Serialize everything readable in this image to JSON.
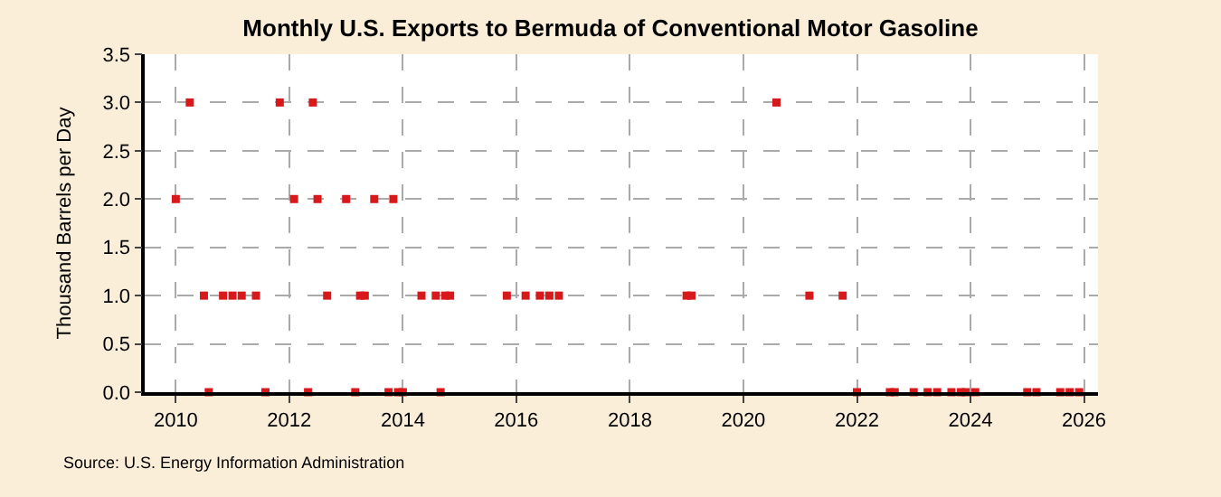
{
  "chart_data": {
    "type": "scatter",
    "title": "Monthly U.S. Exports to Bermuda of Conventional Motor Gasoline",
    "ylabel": "Thousand Barrels per Day",
    "annotations": [
      "Source: U.S. Energy Information Administration"
    ],
    "x": [
      "2010-01",
      "2010-04",
      "2010-07",
      "2010-08",
      "2010-11",
      "2011-01",
      "2011-03",
      "2011-06",
      "2011-08",
      "2011-11",
      "2012-02",
      "2012-05",
      "2012-06",
      "2012-07",
      "2012-09",
      "2013-01",
      "2013-03",
      "2013-04",
      "2013-05",
      "2013-07",
      "2013-10",
      "2013-11",
      "2013-12",
      "2014-01",
      "2014-05",
      "2014-08",
      "2014-09",
      "2014-10",
      "2014-11",
      "2015-11",
      "2016-03",
      "2016-06",
      "2016-08",
      "2016-10",
      "2019-01",
      "2019-02",
      "2020-08",
      "2021-03",
      "2021-10",
      "2022-01",
      "2022-08",
      "2022-09",
      "2023-01",
      "2023-04",
      "2023-06",
      "2023-09",
      "2023-11",
      "2023-12",
      "2024-02",
      "2025-01",
      "2025-03",
      "2025-08",
      "2025-10",
      "2025-12"
    ],
    "series": [
      {
        "color": "#d7191c",
        "values": [
          2,
          3,
          1,
          0,
          1,
          1,
          1,
          1,
          0,
          3,
          2,
          0,
          3,
          2,
          1,
          2,
          0,
          1,
          1,
          2,
          0,
          2,
          0,
          0,
          1,
          1,
          0,
          1,
          1,
          1,
          1,
          1,
          1,
          1,
          1,
          1,
          3,
          1,
          1,
          0,
          0,
          0,
          0,
          0,
          0,
          0,
          0,
          0,
          0,
          0,
          0,
          0,
          0,
          0
        ]
      }
    ],
    "xlim": [
      "2009-06-15",
      "2026-04-01"
    ],
    "xticks": [
      {
        "value": "2010-01-01",
        "label": "2010"
      },
      {
        "value": "2012-01-01",
        "label": "2012"
      },
      {
        "value": "2014-01-01",
        "label": "2014"
      },
      {
        "value": "2016-01-01",
        "label": "2016"
      },
      {
        "value": "2018-01-01",
        "label": "2018"
      },
      {
        "value": "2020-01-01",
        "label": "2020"
      },
      {
        "value": "2022-01-01",
        "label": "2022"
      },
      {
        "value": "2024-01-01",
        "label": "2024"
      },
      {
        "value": "2026-01-01",
        "label": "2026"
      }
    ],
    "ylim": [
      0,
      3.5
    ],
    "yticks": [
      {
        "value": 0,
        "label": "0.0"
      },
      {
        "value": 0.5,
        "label": "0.5"
      },
      {
        "value": 1,
        "label": "1.0"
      },
      {
        "value": 1.5,
        "label": "1.5"
      },
      {
        "value": 2,
        "label": "2.0"
      },
      {
        "value": 2.5,
        "label": "2.5"
      },
      {
        "value": 3,
        "label": "3.0"
      },
      {
        "value": 3.5,
        "label": "3.5"
      }
    ],
    "grid": true,
    "marker": "square",
    "legend": false
  }
}
